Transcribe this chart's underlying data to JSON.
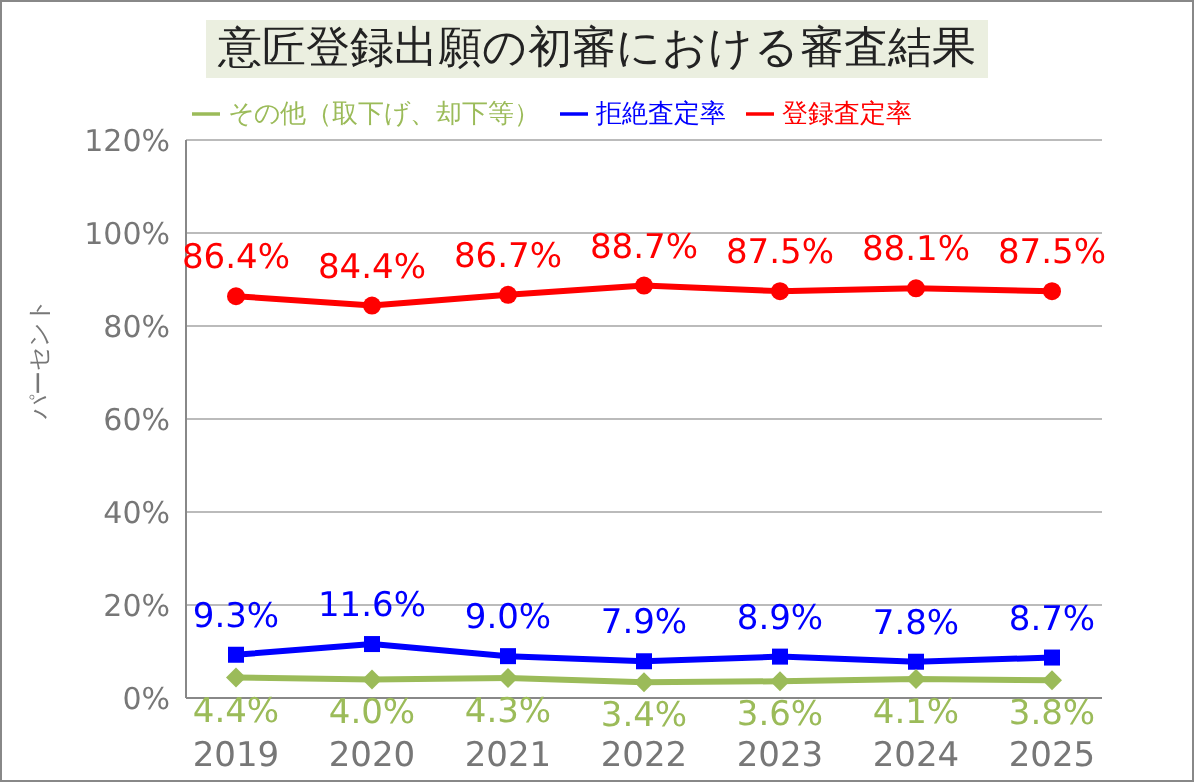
{
  "chart_data": {
    "type": "line",
    "title": "意匠登録出願の初審における審査結果",
    "ylabel": "パーセント",
    "categories": [
      "2019",
      "2020",
      "2021",
      "2022",
      "2023",
      "2024",
      "2025"
    ],
    "series": [
      {
        "name": "登録査定率",
        "color": "#ff0000",
        "marker": "circle",
        "values": [
          86.4,
          84.4,
          86.7,
          88.7,
          87.5,
          88.1,
          87.5
        ],
        "value_labels": [
          "86.4%",
          "84.4%",
          "86.7%",
          "88.7%",
          "87.5%",
          "88.1%",
          "87.5%"
        ]
      },
      {
        "name": "拒絶査定率",
        "color": "#0000ff",
        "marker": "square",
        "values": [
          9.3,
          11.6,
          9.0,
          7.9,
          8.9,
          7.8,
          8.7
        ],
        "value_labels": [
          "9.3%",
          "11.6%",
          "9.0%",
          "7.9%",
          "8.9%",
          "7.8%",
          "8.7%"
        ]
      },
      {
        "name": "その他（取下げ、却下等）",
        "color": "#9bbb59",
        "marker": "diamond",
        "values": [
          4.4,
          4.0,
          4.3,
          3.4,
          3.6,
          4.1,
          3.8
        ],
        "value_labels": [
          "4.4%",
          "4.0%",
          "4.3%",
          "3.4%",
          "3.6%",
          "4.1%",
          "3.8%"
        ]
      }
    ],
    "ylim": [
      0,
      120
    ],
    "yticks": [
      {
        "value": 0,
        "label": "0%"
      },
      {
        "value": 20,
        "label": "20%"
      },
      {
        "value": 40,
        "label": "40%"
      },
      {
        "value": 60,
        "label": "60%"
      },
      {
        "value": 80,
        "label": "80%"
      },
      {
        "value": 100,
        "label": "100%"
      },
      {
        "value": 120,
        "label": "120%"
      }
    ],
    "grid": "y",
    "legend": "top"
  }
}
